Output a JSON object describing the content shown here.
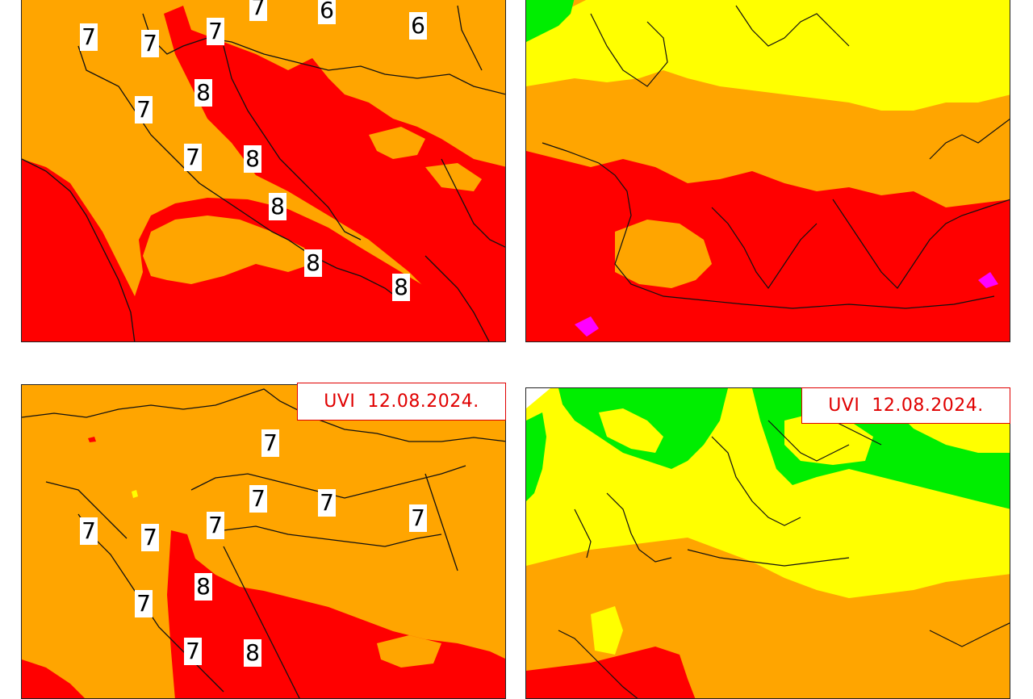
{
  "colors": {
    "uv_6_7": "#ffa500",
    "uv_8_10": "#ff0000",
    "uv_3_5": "#ffff00",
    "uv_1_2": "#00ee00",
    "uv_11plus": "#ff00ff",
    "coastline": "#111111",
    "label_red": "#e00000"
  },
  "panels": {
    "bottom_left": {
      "label": "UVI  12.08.2024."
    },
    "bottom_right": {
      "label": "UVI  12.08.2024."
    }
  },
  "uv_values": {
    "top": [
      "7",
      "6",
      "6",
      "7",
      "7",
      "7",
      "8",
      "7",
      "7",
      "8",
      "8",
      "8",
      "8"
    ],
    "bottom": [
      "7",
      "7",
      "7",
      "7",
      "7",
      "7",
      "7",
      "8",
      "7",
      "7",
      "8"
    ]
  }
}
